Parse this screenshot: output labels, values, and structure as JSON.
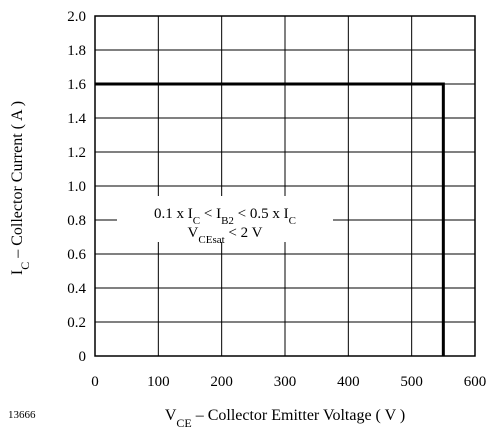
{
  "chart_data": {
    "type": "line",
    "figure_id": "13666",
    "xlim": [
      0,
      600
    ],
    "ylim": [
      0,
      2.0
    ],
    "x_ticks": [
      0,
      100,
      200,
      300,
      400,
      500,
      600
    ],
    "x_tick_labels": [
      "0",
      "100",
      "200",
      "300",
      "400",
      "500",
      "600"
    ],
    "y_ticks": [
      0,
      0.2,
      0.4,
      0.6,
      0.8,
      1.0,
      1.2,
      1.4,
      1.6,
      1.8,
      2.0
    ],
    "y_tick_labels": [
      "0",
      "0.2",
      "0.4",
      "0.6",
      "0.8",
      "1.0",
      "1.2",
      "1.4",
      "1.6",
      "1.8",
      "2.0"
    ],
    "grid": true,
    "xlabel": {
      "v_letter": "V",
      "v_subscript": "CE",
      "rest": " – Collector Emitter Voltage ( V )"
    },
    "ylabel": {
      "i_letter": "I",
      "i_subscript": "C",
      "rest": " – Collector Current ( A )"
    },
    "annotation": {
      "line1": {
        "p1": "0.1 x I",
        "s1": "C",
        "p2": " < I",
        "s2": "B2",
        "p3": " < 0.5 x I",
        "s3": "C"
      },
      "line2": {
        "p1": "V",
        "s1": "CEsat",
        "p2": "  < 2 V"
      }
    },
    "series": [
      {
        "x": [
          0,
          550,
          550
        ],
        "y": [
          1.6,
          1.6,
          0
        ],
        "color": "#000000"
      }
    ]
  }
}
